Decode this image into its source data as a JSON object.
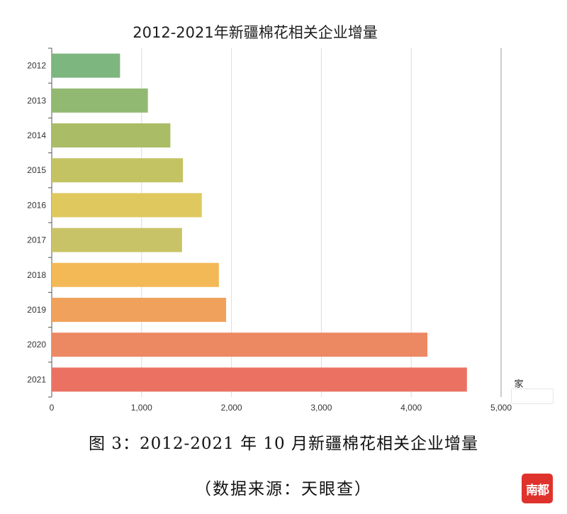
{
  "chart_data": {
    "type": "bar",
    "orientation": "horizontal",
    "title": "2012-2021年新疆棉花相关企业增量",
    "categories": [
      "2012",
      "2013",
      "2014",
      "2015",
      "2016",
      "2017",
      "2018",
      "2019",
      "2020",
      "2021"
    ],
    "values": [
      760,
      1070,
      1320,
      1460,
      1670,
      1450,
      1860,
      1940,
      4180,
      4620
    ],
    "xlim": [
      0,
      5000
    ],
    "x_ticks": [
      "0",
      "1,000",
      "2,000",
      "3,000",
      "4,000",
      "5,000"
    ],
    "unit": "家",
    "grid": true,
    "bar_colors": [
      "#7db67f",
      "#92b971",
      "#aabc66",
      "#c4c363",
      "#dfc95f",
      "#c9c367",
      "#f3b957",
      "#f0a25c",
      "#ec8862",
      "#eb7262"
    ]
  },
  "caption": {
    "main": "图 3：2012-2021 年 10 月新疆棉花相关企业增量",
    "source": "（数据来源：天眼查）"
  },
  "logo": {
    "text": "南都"
  }
}
